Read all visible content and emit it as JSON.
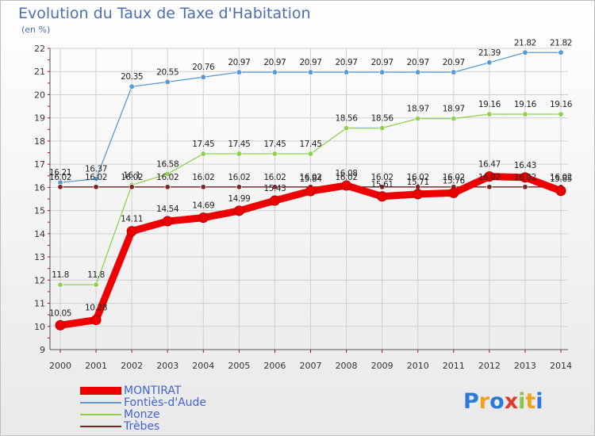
{
  "title": "Evolution du Taux de Taxe d'Habitation",
  "subtitle": "(en %)",
  "logo": {
    "text": "Proxiti",
    "letters": [
      {
        "ch": "P",
        "color": "#2b7bd6"
      },
      {
        "ch": "r",
        "color": "#f0a31a"
      },
      {
        "ch": "o",
        "color": "#2b7bd6"
      },
      {
        "ch": "x",
        "color": "#e03a2b"
      },
      {
        "ch": "i",
        "color": "#8bc34a"
      },
      {
        "ch": "t",
        "color": "#f0a31a"
      },
      {
        "ch": "i",
        "color": "#2b7bd6"
      }
    ]
  },
  "chart_data": {
    "type": "line",
    "title": "Evolution du Taux de Taxe d'Habitation",
    "subtitle": "(en %)",
    "x": [
      "2000",
      "2001",
      "2002",
      "2003",
      "2004",
      "2005",
      "2006",
      "2007",
      "2008",
      "2009",
      "2010",
      "2011",
      "2012",
      "2013",
      "2014"
    ],
    "ylim": [
      9,
      22
    ],
    "yticks": [
      "9",
      "10",
      "11",
      "12",
      "13",
      "14",
      "15",
      "16",
      "17",
      "18",
      "19",
      "20",
      "21",
      "22"
    ],
    "grid": true,
    "legend_position": "bottom",
    "series": [
      {
        "name": "MONTIRAT",
        "color": "#ee0000",
        "values": [
          10.05,
          10.28,
          14.11,
          14.54,
          14.69,
          14.99,
          15.43,
          15.84,
          16.08,
          15.61,
          15.71,
          15.76,
          16.47,
          16.43,
          15.85
        ],
        "labels": [
          "10.05",
          "10.28",
          "14.11",
          "14.54",
          "14.69",
          "14.99",
          "15.43",
          "15.84",
          "16.08",
          "15.61",
          "15.71",
          "15.76",
          "16.47",
          "16.43",
          "15.85"
        ]
      },
      {
        "name": "Fontiès-d'Aude",
        "color": "#5b9bd5",
        "values": [
          16.21,
          16.37,
          20.35,
          20.55,
          20.76,
          20.97,
          20.97,
          20.97,
          20.97,
          20.97,
          20.97,
          20.97,
          21.39,
          21.82,
          21.82
        ],
        "labels": [
          "16.21",
          "16.37",
          "20.35",
          "20.55",
          "20.76",
          "20.97",
          "20.97",
          "20.97",
          "20.97",
          "20.97",
          "20.97",
          "20.97",
          "21.39",
          "21.82",
          "21.82"
        ]
      },
      {
        "name": "Monze",
        "color": "#8fd14f",
        "values": [
          11.8,
          11.8,
          16.1,
          16.58,
          17.45,
          17.45,
          17.45,
          17.45,
          18.56,
          18.56,
          18.97,
          18.97,
          19.16,
          19.16,
          19.16
        ],
        "labels": [
          "11.8",
          "11.8",
          "16.1",
          "16.58",
          "17.45",
          "17.45",
          "17.45",
          "17.45",
          "18.56",
          "18.56",
          "18.97",
          "18.97",
          "19.16",
          "19.16",
          "19.16"
        ]
      },
      {
        "name": "Trèbes",
        "color": "#7a2626",
        "values": [
          16.02,
          16.02,
          16.02,
          16.02,
          16.02,
          16.02,
          16.02,
          16.02,
          16.02,
          16.02,
          16.02,
          16.02,
          16.02,
          16.02,
          16.02
        ],
        "labels": [
          "16.02",
          "16.02",
          "16.02",
          "16.02",
          "16.02",
          "16.02",
          "16.02",
          "16.02",
          "16.02",
          "16.02",
          "16.02",
          "16.02",
          "16.02",
          "16.02",
          "16.02"
        ]
      }
    ]
  }
}
